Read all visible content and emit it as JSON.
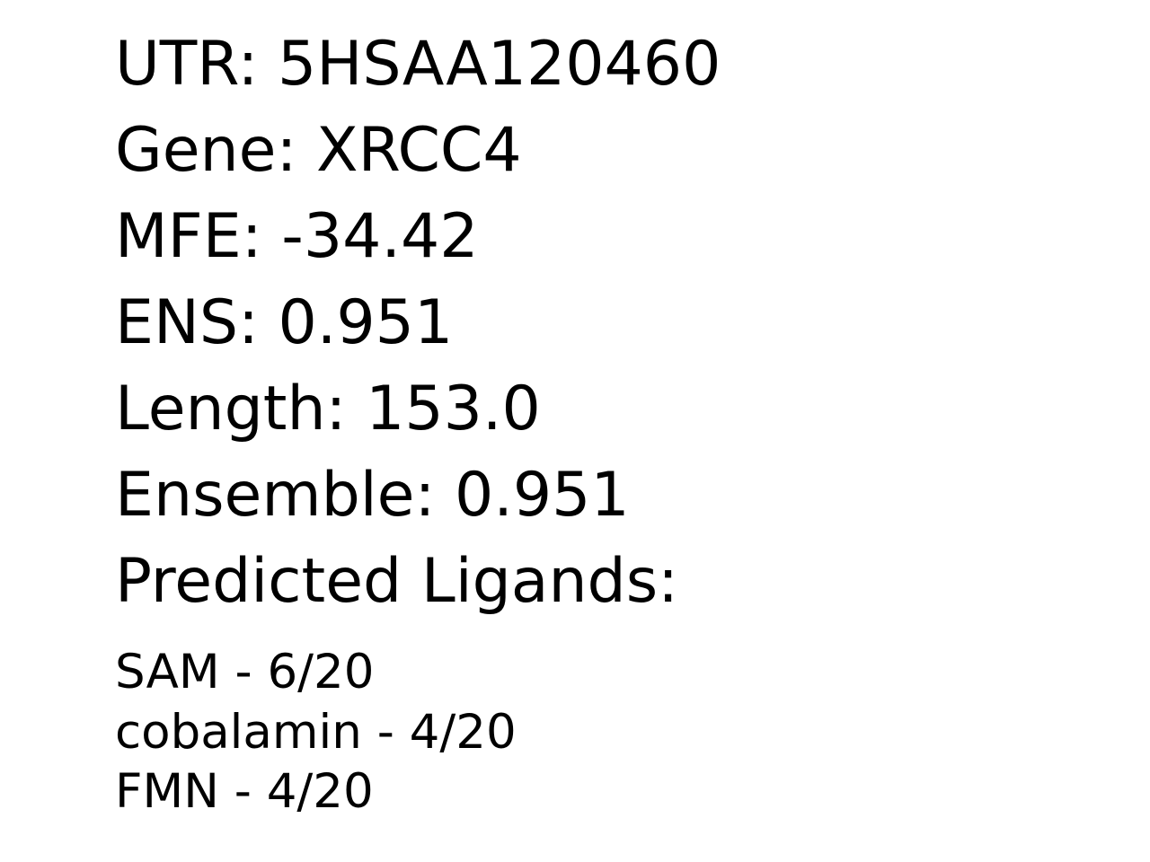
{
  "fields": [
    {
      "label": "UTR:",
      "value": "5HSAA120460"
    },
    {
      "label": "Gene:",
      "value": "XRCC4"
    },
    {
      "label": "MFE:",
      "value": "-34.42"
    },
    {
      "label": "ENS:",
      "value": "0.951"
    },
    {
      "label": "Length:",
      "value": "153.0"
    },
    {
      "label": "Ensemble:",
      "value": "0.951"
    }
  ],
  "ligands_heading": "Predicted Ligands:",
  "ligands": [
    {
      "name": "SAM",
      "score": "6/20"
    },
    {
      "name": "cobalamin",
      "score": "4/20"
    },
    {
      "name": "FMN",
      "score": "4/20"
    }
  ]
}
